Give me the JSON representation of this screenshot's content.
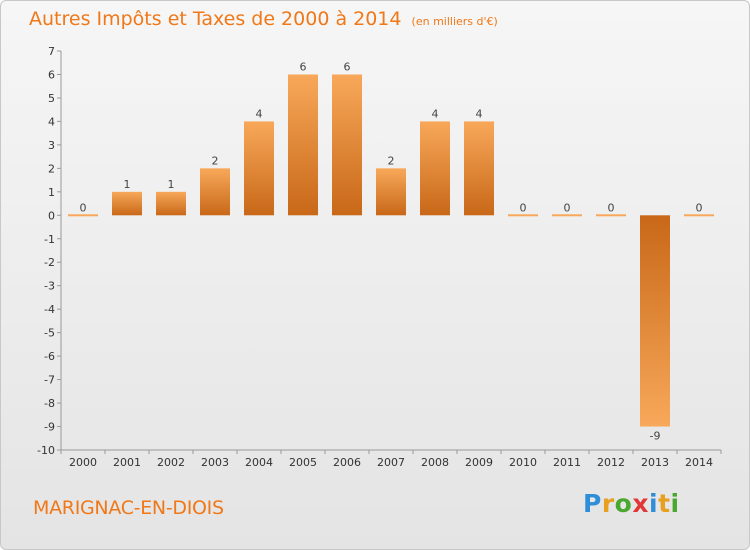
{
  "header": {
    "title": "Autres Impôts et Taxes de 2000 à 2014",
    "subtitle": "(en milliers d'€)"
  },
  "footer": {
    "place": "MARIGNAC-EN-DIOIS",
    "brand": [
      "P",
      "r",
      "o",
      "x",
      "i",
      "t",
      "i"
    ]
  },
  "colors": {
    "bar_light": "#f8a85a",
    "bar_dark": "#c86818",
    "accent": "#f07818"
  },
  "chart_data": {
    "type": "bar",
    "title": "Autres Impôts et Taxes de 2000 à 2014",
    "subtitle": "(en milliers d'€)",
    "categories": [
      "2000",
      "2001",
      "2002",
      "2003",
      "2004",
      "2005",
      "2006",
      "2007",
      "2008",
      "2009",
      "2010",
      "2011",
      "2012",
      "2013",
      "2014"
    ],
    "values": [
      0,
      1,
      1,
      2,
      4,
      6,
      6,
      2,
      4,
      4,
      0,
      0,
      0,
      -9,
      0
    ],
    "data_labels": [
      "0",
      "1",
      "1",
      "2",
      "4",
      "6",
      "6",
      "2",
      "4",
      "4",
      "0",
      "0",
      "0",
      "-9",
      "0"
    ],
    "ylim": [
      -10,
      7
    ],
    "yticks": [
      "7",
      "6",
      "5",
      "4",
      "3",
      "2",
      "1",
      "0",
      "-1",
      "-2",
      "-3",
      "-4",
      "-5",
      "-6",
      "-7",
      "-8",
      "-9",
      "-10"
    ],
    "grid": false,
    "legend": "none"
  }
}
